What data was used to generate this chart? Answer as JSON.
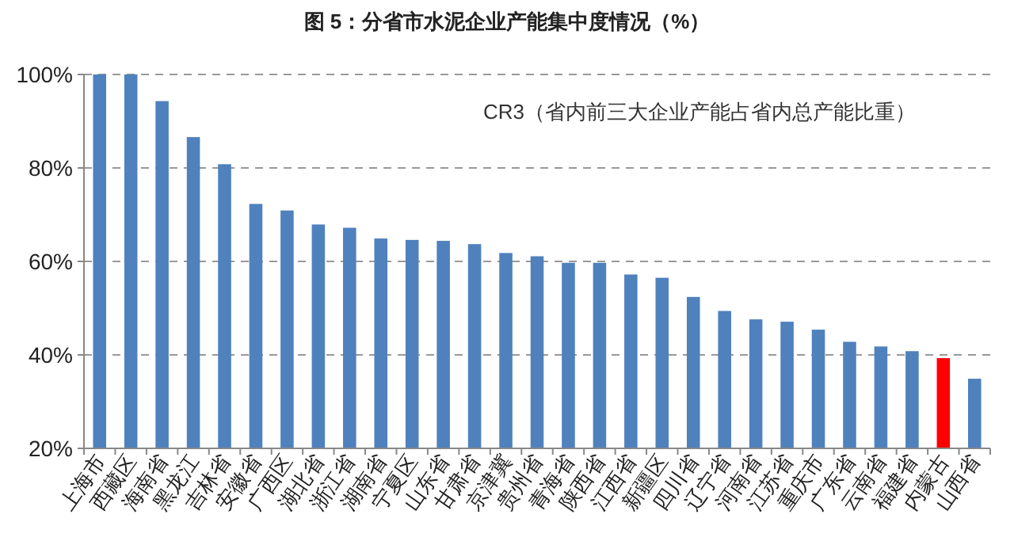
{
  "chart_data": {
    "type": "bar",
    "title": "图 5：分省市水泥企业产能集中度情况（%）",
    "categories": [
      "上海市",
      "西藏区",
      "海南省",
      "黑龙江",
      "吉林省",
      "安徽省",
      "广西区",
      "湖北省",
      "浙江省",
      "湖南省",
      "宁夏区",
      "山东省",
      "甘肃省",
      "京津冀",
      "贵州省",
      "青海省",
      "陕西省",
      "江西省",
      "新疆区",
      "四川省",
      "辽宁省",
      "河南省",
      "江苏省",
      "重庆市",
      "广东省",
      "云南省",
      "福建省",
      "内蒙古",
      "山西省"
    ],
    "values": [
      100,
      100,
      94.3,
      86.6,
      80.8,
      72.3,
      70.9,
      67.9,
      67.2,
      64.9,
      64.6,
      64.4,
      63.7,
      61.8,
      61.1,
      59.7,
      59.7,
      57.2,
      56.5,
      52.4,
      49.4,
      47.6,
      47.1,
      45.4,
      42.8,
      41.8,
      40.8,
      39.3,
      34.9
    ],
    "colors": [
      "#4f81bd",
      "#4f81bd",
      "#4f81bd",
      "#4f81bd",
      "#4f81bd",
      "#4f81bd",
      "#4f81bd",
      "#4f81bd",
      "#4f81bd",
      "#4f81bd",
      "#4f81bd",
      "#4f81bd",
      "#4f81bd",
      "#4f81bd",
      "#4f81bd",
      "#4f81bd",
      "#4f81bd",
      "#4f81bd",
      "#4f81bd",
      "#4f81bd",
      "#4f81bd",
      "#4f81bd",
      "#4f81bd",
      "#4f81bd",
      "#4f81bd",
      "#4f81bd",
      "#4f81bd",
      "#ff0000",
      "#4f81bd"
    ],
    "ylim": [
      20,
      100
    ],
    "yticks": [
      {
        "value": 20,
        "label": "20%"
      },
      {
        "value": 40,
        "label": "40%"
      },
      {
        "value": 60,
        "label": "60%"
      },
      {
        "value": 80,
        "label": "80%"
      },
      {
        "value": 100,
        "label": "100%"
      }
    ],
    "grid": "y",
    "annotations": [
      "CR3（省内前三大企业产能占省内总产能比重）"
    ]
  }
}
